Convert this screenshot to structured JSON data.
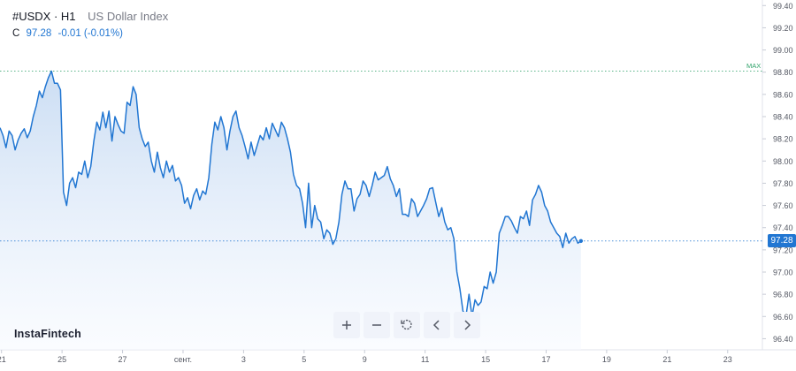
{
  "header": {
    "symbol": "#USDX · H1",
    "description": "US Dollar Index"
  },
  "ohlc": {
    "label": "C",
    "value": "97.28",
    "change": "-0.01 (-0.01%)"
  },
  "brand": "InstaFintech",
  "toolbar": {
    "zoom_in_icon": "plus-icon",
    "zoom_out_icon": "minus-icon",
    "reset_icon": "reset-icon",
    "scroll_left_icon": "chevron-left-icon",
    "scroll_right_icon": "chevron-right-icon"
  },
  "markers": {
    "max_label": "MAX",
    "max_value": 98.81,
    "last_price_label": "97.28",
    "last_price": 97.28
  },
  "colors": {
    "line": "#2176d2",
    "area_top": "#c9dcf3",
    "area_bottom": "#f7faff",
    "max_line": "#31a36b",
    "price_tag": "#2176d2",
    "grid": "#f0f3fa"
  },
  "chart_data": {
    "type": "area",
    "title": "",
    "xlabel": "",
    "ylabel": "",
    "ylim": [
      96.3,
      99.45
    ],
    "y_ticks": [
      "99.40",
      "99.20",
      "99.00",
      "98.80",
      "98.60",
      "98.40",
      "98.20",
      "98.00",
      "97.80",
      "97.60",
      "97.40",
      "97.20",
      "97.00",
      "96.80",
      "96.60",
      "96.40"
    ],
    "x_ticks": [
      {
        "label": "21",
        "x": 0.5
      },
      {
        "label": "25",
        "x": 20.5
      },
      {
        "label": "27",
        "x": 40.5
      },
      {
        "label": "сент.",
        "x": 60.5
      },
      {
        "label": "3",
        "x": 80.5
      },
      {
        "label": "5",
        "x": 100.5
      },
      {
        "label": "9",
        "x": 120.5
      },
      {
        "label": "11",
        "x": 140.5
      },
      {
        "label": "15",
        "x": 160.5
      },
      {
        "label": "17",
        "x": 180.5
      },
      {
        "label": "19",
        "x": 200.5
      },
      {
        "label": "21",
        "x": 220.5
      },
      {
        "label": "23",
        "x": 240.5
      }
    ],
    "x_range": [
      0,
      247
    ],
    "series": [
      {
        "values": [
          98.3,
          98.23,
          98.12,
          98.27,
          98.23,
          98.1,
          98.19,
          98.25,
          98.29,
          98.21,
          98.27,
          98.4,
          98.5,
          98.63,
          98.57,
          98.67,
          98.75,
          98.81,
          98.7,
          98.7,
          98.64,
          97.72,
          97.6,
          97.8,
          97.85,
          97.76,
          97.9,
          97.88,
          98.0,
          97.85,
          97.95,
          98.18,
          98.35,
          98.28,
          98.44,
          98.3,
          98.45,
          98.18,
          98.4,
          98.33,
          98.27,
          98.25,
          98.53,
          98.5,
          98.67,
          98.6,
          98.3,
          98.2,
          98.13,
          98.17,
          98.0,
          97.9,
          98.08,
          97.94,
          97.85,
          98.0,
          97.9,
          97.96,
          97.82,
          97.85,
          97.78,
          97.62,
          97.67,
          97.57,
          97.69,
          97.75,
          97.65,
          97.73,
          97.7,
          97.85,
          98.15,
          98.35,
          98.28,
          98.4,
          98.3,
          98.1,
          98.27,
          98.4,
          98.45,
          98.3,
          98.23,
          98.13,
          98.02,
          98.17,
          98.05,
          98.14,
          98.23,
          98.19,
          98.3,
          98.2,
          98.34,
          98.28,
          98.22,
          98.35,
          98.3,
          98.2,
          98.08,
          97.88,
          97.78,
          97.75,
          97.62,
          97.4,
          97.8,
          97.4,
          97.6,
          97.48,
          97.45,
          97.3,
          97.38,
          97.35,
          97.25,
          97.3,
          97.45,
          97.7,
          97.82,
          97.75,
          97.75,
          97.55,
          97.66,
          97.7,
          97.82,
          97.78,
          97.68,
          97.78,
          97.9,
          97.83,
          97.85,
          97.87,
          97.95,
          97.84,
          97.78,
          97.68,
          97.75,
          97.52,
          97.52,
          97.5,
          97.66,
          97.62,
          97.5,
          97.55,
          97.6,
          97.66,
          97.75,
          97.76,
          97.63,
          97.5,
          97.58,
          97.45,
          97.38,
          97.4,
          97.3,
          97.0,
          96.85,
          96.65,
          96.6,
          96.8,
          96.6,
          96.75,
          96.7,
          96.73,
          96.87,
          96.85,
          97.0,
          96.9,
          97.0,
          97.35,
          97.42,
          97.5,
          97.5,
          97.46,
          97.4,
          97.35,
          97.5,
          97.48,
          97.55,
          97.42,
          97.65,
          97.7,
          97.78,
          97.72,
          97.6,
          97.55,
          97.45,
          97.4,
          97.35,
          97.32,
          97.22,
          97.35,
          97.26,
          97.3,
          97.32,
          97.26,
          97.28
        ]
      }
    ]
  }
}
